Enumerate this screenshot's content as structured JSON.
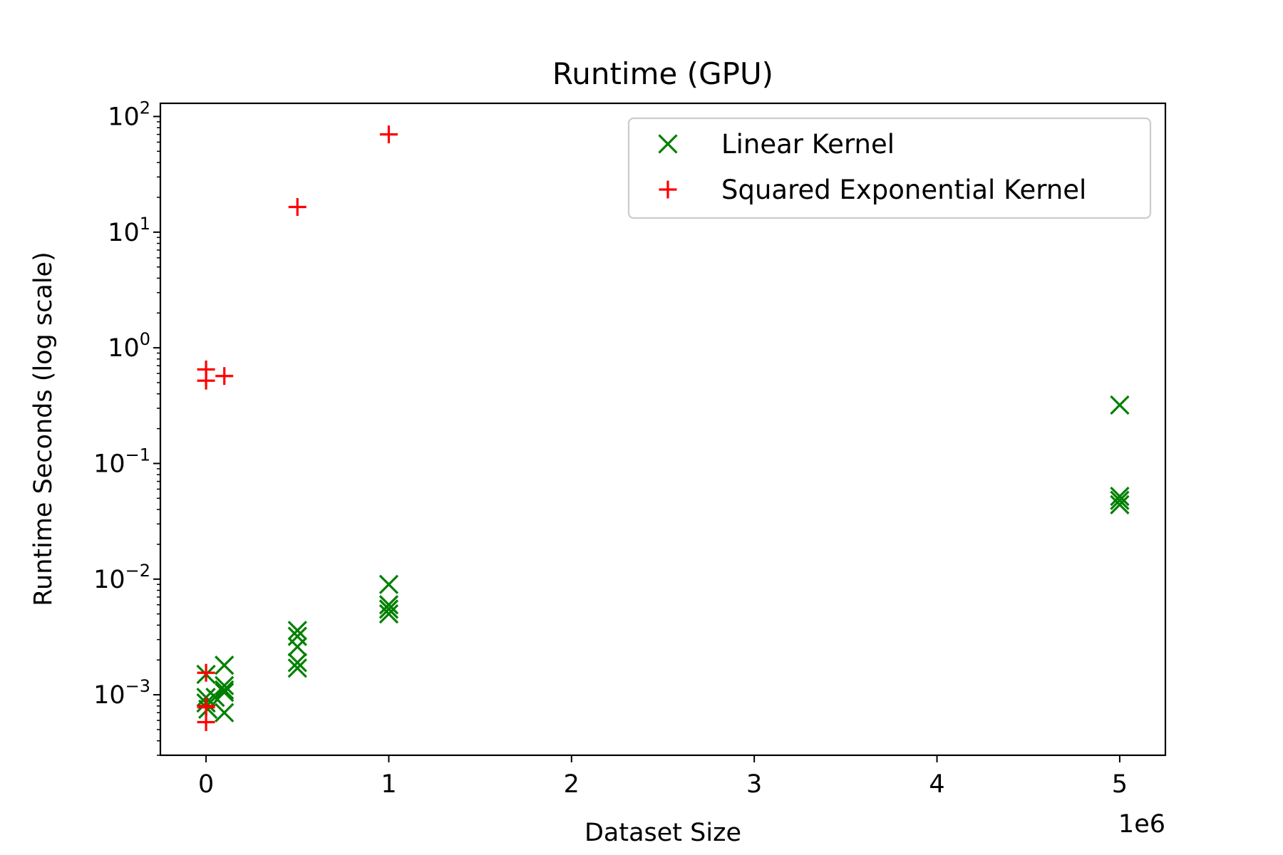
{
  "chart_data": {
    "type": "scatter",
    "title": "Runtime (GPU)",
    "xlabel": "Dataset Size",
    "ylabel": "Runtime Seconds (log scale)",
    "x_offset_label": "1e6",
    "xscale": "linear",
    "yscale": "log",
    "xlim": [
      -250000,
      5250000
    ],
    "ylim": [
      0.0003,
      130
    ],
    "x_ticks": [
      {
        "value": 0,
        "label": "0"
      },
      {
        "value": 1000000,
        "label": "1"
      },
      {
        "value": 2000000,
        "label": "2"
      },
      {
        "value": 3000000,
        "label": "3"
      },
      {
        "value": 4000000,
        "label": "4"
      },
      {
        "value": 5000000,
        "label": "5"
      }
    ],
    "y_ticks": [
      {
        "value": 0.001,
        "base": "10",
        "exp": "−3"
      },
      {
        "value": 0.01,
        "base": "10",
        "exp": "−2"
      },
      {
        "value": 0.1,
        "base": "10",
        "exp": "−1"
      },
      {
        "value": 1,
        "base": "10",
        "exp": "0"
      },
      {
        "value": 10,
        "base": "10",
        "exp": "1"
      },
      {
        "value": 100,
        "base": "10",
        "exp": "2"
      }
    ],
    "grid": false,
    "legend_position": "top-right",
    "series": [
      {
        "name": "Linear Kernel",
        "marker": "x",
        "color": "#008000",
        "points": [
          {
            "x": 0,
            "y": 0.0015
          },
          {
            "x": 0,
            "y": 0.00095
          },
          {
            "x": 0,
            "y": 0.00085
          },
          {
            "x": 10000,
            "y": 0.00075
          },
          {
            "x": 50000,
            "y": 0.00095
          },
          {
            "x": 100000,
            "y": 0.0018
          },
          {
            "x": 100000,
            "y": 0.0012
          },
          {
            "x": 100000,
            "y": 0.0011
          },
          {
            "x": 100000,
            "y": 0.00105
          },
          {
            "x": 100000,
            "y": 0.0007
          },
          {
            "x": 500000,
            "y": 0.0036
          },
          {
            "x": 500000,
            "y": 0.0032
          },
          {
            "x": 500000,
            "y": 0.0026
          },
          {
            "x": 500000,
            "y": 0.0019
          },
          {
            "x": 500000,
            "y": 0.0017
          },
          {
            "x": 1000000,
            "y": 0.009
          },
          {
            "x": 1000000,
            "y": 0.006
          },
          {
            "x": 1000000,
            "y": 0.0055
          },
          {
            "x": 1000000,
            "y": 0.005
          },
          {
            "x": 5000000,
            "y": 0.32
          },
          {
            "x": 5000000,
            "y": 0.052
          },
          {
            "x": 5000000,
            "y": 0.048
          },
          {
            "x": 5000000,
            "y": 0.044
          }
        ]
      },
      {
        "name": "Squared Exponential Kernel",
        "marker": "+",
        "color": "#ff0000",
        "points": [
          {
            "x": 0,
            "y": 0.65
          },
          {
            "x": 0,
            "y": 0.52
          },
          {
            "x": 100000,
            "y": 0.57
          },
          {
            "x": 500000,
            "y": 16.5
          },
          {
            "x": 1000000,
            "y": 70
          },
          {
            "x": 0,
            "y": 0.00155
          },
          {
            "x": 0,
            "y": 0.0008
          },
          {
            "x": 0,
            "y": 0.00078
          },
          {
            "x": 0,
            "y": 0.00058
          }
        ]
      }
    ]
  }
}
